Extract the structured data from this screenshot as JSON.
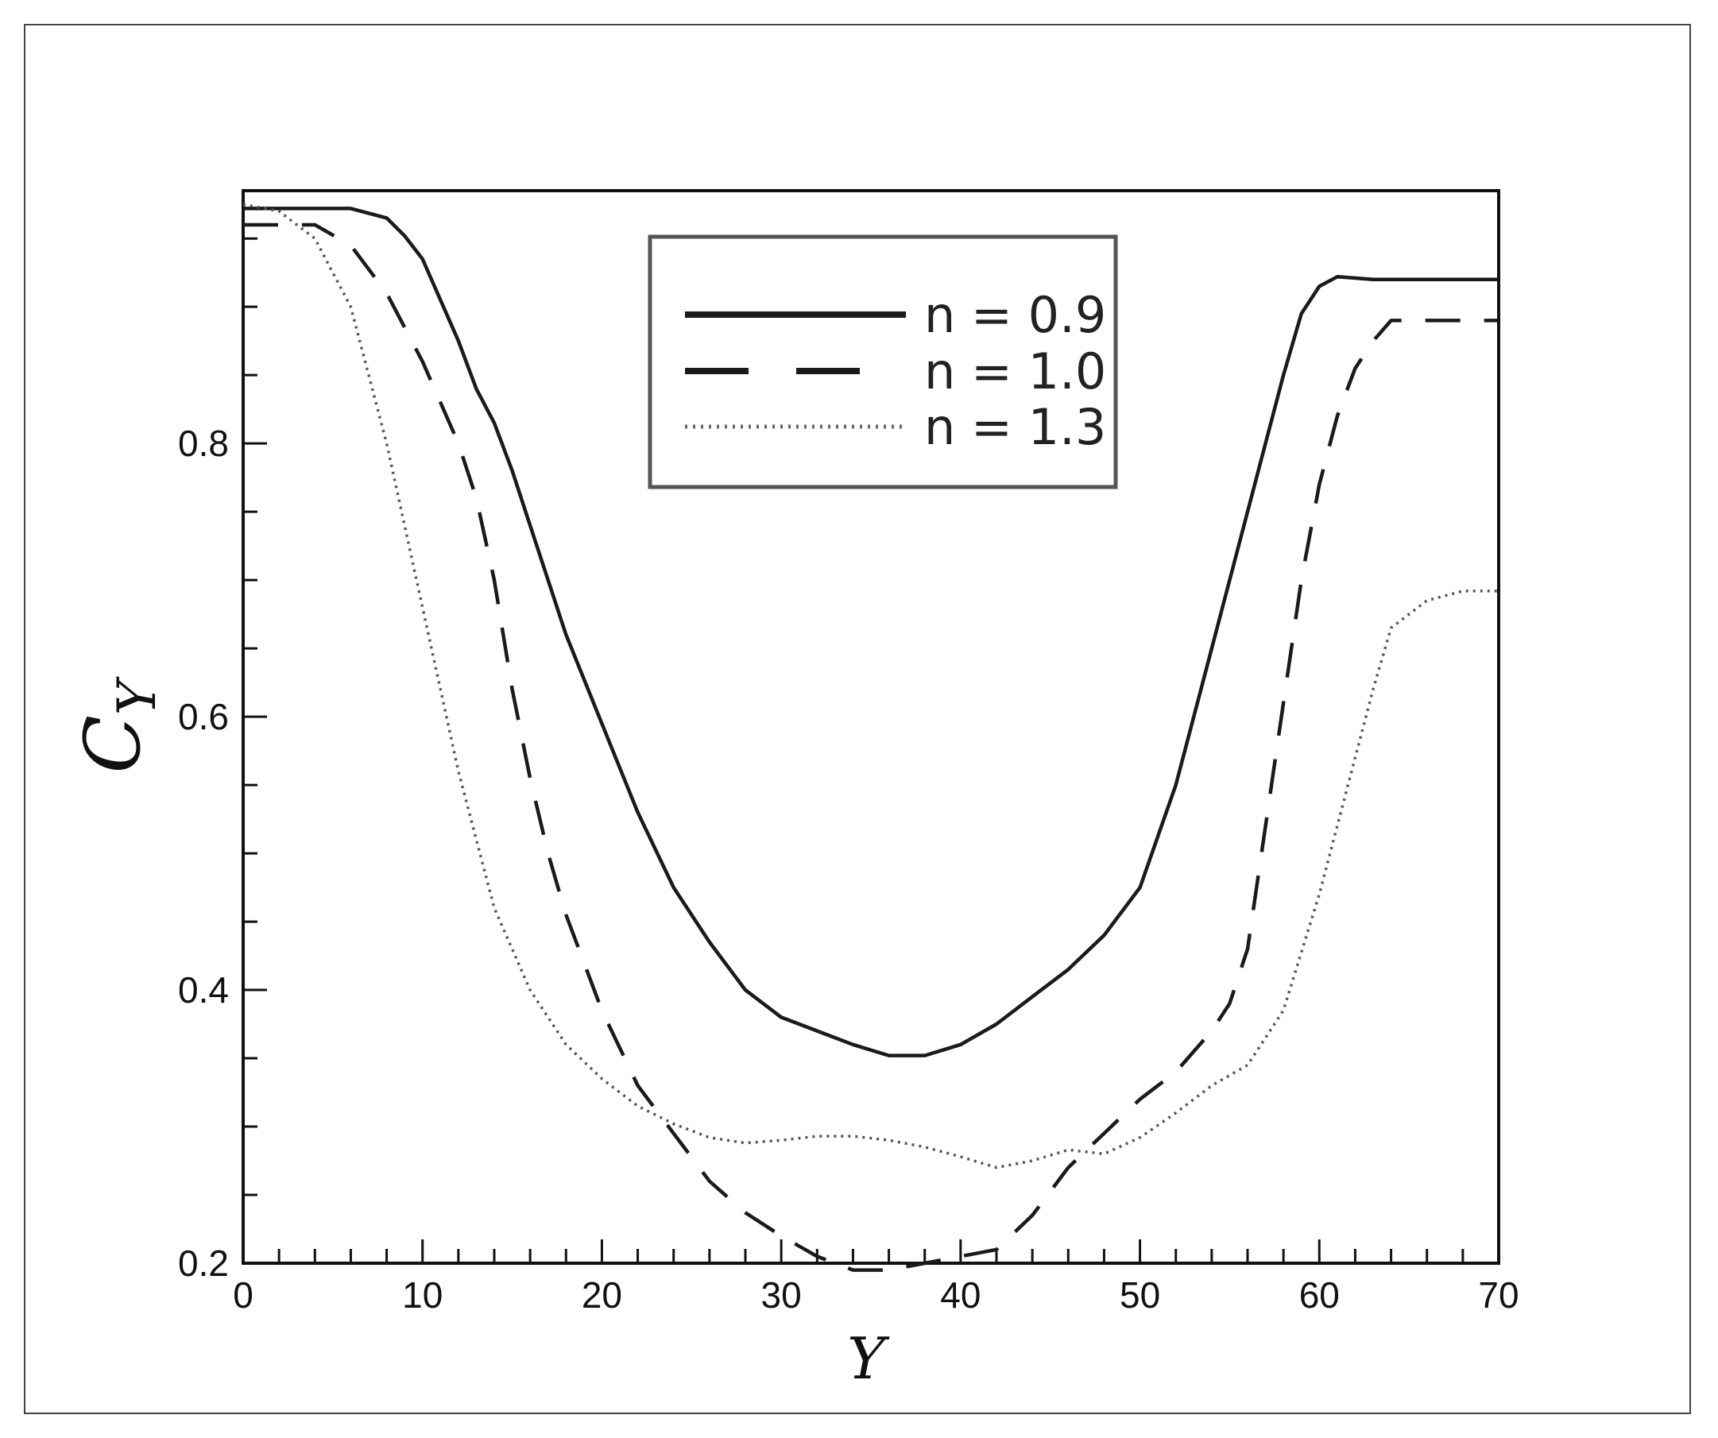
{
  "chart_data": {
    "type": "line",
    "title": "",
    "xlabel": "Y",
    "ylabel": "C",
    "ylabel_subscript": "Y",
    "xlim": [
      0,
      70
    ],
    "ylim": [
      0.2,
      0.985
    ],
    "xticks": [
      0,
      10,
      20,
      30,
      40,
      50,
      60,
      70
    ],
    "xtick_labels": [
      "0",
      "10",
      "20",
      "30",
      "40",
      "50",
      "60",
      "70"
    ],
    "yticks": [
      0.2,
      0.4,
      0.6,
      0.8
    ],
    "ytick_labels": [
      "0.2",
      "0.4",
      "0.6",
      "0.8"
    ],
    "grid": false,
    "legend": {
      "placement": "top-center",
      "entries": [
        "n = 0.9",
        "n = 1.0",
        "n = 1.3"
      ]
    },
    "colors": {
      "line": "#1a1a1a",
      "dotted": "#555555",
      "legend_border": "#555555"
    },
    "series": [
      {
        "name": "n = 0.9",
        "style": "solid",
        "x": [
          0,
          6,
          8,
          9,
          10,
          11,
          12,
          13,
          14,
          15,
          16,
          17,
          18,
          20,
          22,
          24,
          26,
          28,
          30,
          32,
          34,
          36,
          38,
          40,
          42,
          44,
          46,
          48,
          50,
          52,
          54,
          56,
          58,
          59,
          60,
          61,
          63,
          70
        ],
        "y": [
          0.972,
          0.972,
          0.965,
          0.952,
          0.935,
          0.905,
          0.875,
          0.84,
          0.815,
          0.78,
          0.74,
          0.7,
          0.66,
          0.595,
          0.53,
          0.475,
          0.435,
          0.4,
          0.38,
          0.37,
          0.36,
          0.352,
          0.352,
          0.36,
          0.375,
          0.395,
          0.415,
          0.44,
          0.475,
          0.55,
          0.65,
          0.75,
          0.85,
          0.895,
          0.915,
          0.922,
          0.92,
          0.92
        ]
      },
      {
        "name": "n = 1.0",
        "style": "dashed",
        "x": [
          0,
          4,
          6,
          8,
          10,
          12,
          13,
          14,
          15,
          16,
          17,
          18,
          19,
          20,
          22,
          24,
          26,
          28,
          30,
          32,
          34,
          36,
          38,
          40,
          42,
          44,
          46,
          48,
          50,
          52,
          54,
          55,
          56,
          57,
          58,
          59,
          60,
          61,
          62,
          63,
          64,
          70
        ],
        "y": [
          0.96,
          0.96,
          0.945,
          0.91,
          0.86,
          0.8,
          0.76,
          0.7,
          0.62,
          0.555,
          0.5,
          0.455,
          0.42,
          0.385,
          0.33,
          0.295,
          0.26,
          0.237,
          0.22,
          0.205,
          0.195,
          0.195,
          0.2,
          0.205,
          0.21,
          0.235,
          0.27,
          0.295,
          0.32,
          0.34,
          0.37,
          0.39,
          0.43,
          0.52,
          0.61,
          0.7,
          0.77,
          0.82,
          0.855,
          0.875,
          0.89,
          0.89
        ]
      },
      {
        "name": "n = 1.3",
        "style": "dotted",
        "x": [
          0,
          2,
          4,
          6,
          8,
          10,
          12,
          14,
          16,
          18,
          20,
          22,
          24,
          26,
          28,
          30,
          32,
          34,
          36,
          38,
          40,
          42,
          44,
          46,
          48,
          50,
          52,
          54,
          56,
          58,
          60,
          62,
          63,
          64,
          66,
          68,
          70
        ],
        "y": [
          0.975,
          0.97,
          0.95,
          0.9,
          0.8,
          0.68,
          0.56,
          0.46,
          0.4,
          0.36,
          0.335,
          0.315,
          0.302,
          0.292,
          0.288,
          0.29,
          0.293,
          0.293,
          0.29,
          0.285,
          0.278,
          0.27,
          0.275,
          0.283,
          0.28,
          0.292,
          0.31,
          0.33,
          0.345,
          0.385,
          0.47,
          0.57,
          0.62,
          0.665,
          0.685,
          0.692,
          0.692
        ]
      }
    ]
  }
}
